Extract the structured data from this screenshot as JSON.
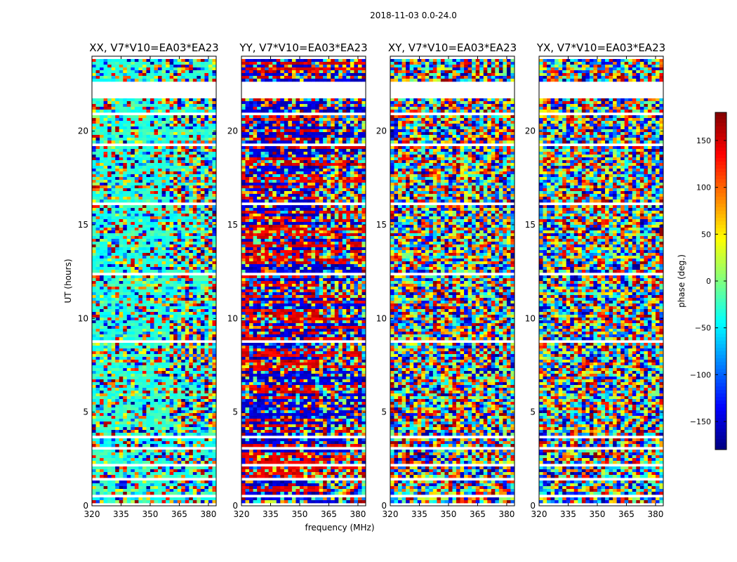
{
  "figure": {
    "suptitle": "2018-11-03 0.0-24.0"
  },
  "chart_data": [
    {
      "type": "heatmap",
      "title": "XX, V7*V10=EA03*EA23",
      "xlabel": "",
      "ylabel": "UT (hours)",
      "xlim": [
        320,
        384
      ],
      "ylim": [
        0,
        24
      ],
      "xticks": [
        320,
        335,
        350,
        365,
        380
      ],
      "yticks": [
        0,
        5,
        10,
        15,
        20
      ],
      "show_yticklabels": true,
      "pattern_seed": 11,
      "pattern_bias": "cyan-dominant"
    },
    {
      "type": "heatmap",
      "title": "YY, V7*V10=EA03*EA23",
      "xlabel": "frequency (MHz)",
      "ylabel": "",
      "xlim": [
        320,
        384
      ],
      "ylim": [
        0,
        24
      ],
      "xticks": [
        320,
        335,
        350,
        365,
        380
      ],
      "yticks": [
        0,
        5,
        10,
        15,
        20
      ],
      "show_yticklabels": true,
      "pattern_seed": 23,
      "pattern_bias": "red-blue"
    },
    {
      "type": "heatmap",
      "title": "XY, V7*V10=EA03*EA23",
      "xlabel": "",
      "ylabel": "",
      "xlim": [
        320,
        384
      ],
      "ylim": [
        0,
        24
      ],
      "xticks": [
        320,
        335,
        350,
        365,
        380
      ],
      "yticks": [
        0,
        5,
        10,
        15,
        20
      ],
      "show_yticklabels": true,
      "pattern_seed": 37,
      "pattern_bias": "noise"
    },
    {
      "type": "heatmap",
      "title": "YX, V7*V10=EA03*EA23",
      "xlabel": "",
      "ylabel": "",
      "xlim": [
        320,
        384
      ],
      "ylim": [
        0,
        24
      ],
      "xticks": [
        320,
        335,
        350,
        365,
        380
      ],
      "yticks": [
        0,
        5,
        10,
        15,
        20
      ],
      "show_yticklabels": true,
      "pattern_seed": 53,
      "pattern_bias": "noise"
    }
  ],
  "colorbar": {
    "label": "phase (deg.)",
    "range": [
      -180,
      180
    ],
    "ticks": [
      150,
      100,
      50,
      0,
      -50,
      -100,
      -150
    ],
    "tick_labels": [
      "150",
      "100",
      "50",
      "0",
      "−50",
      "−100",
      "−150"
    ],
    "colormap": "jet"
  },
  "data_gaps_hours": [
    [
      0.05,
      0.15
    ],
    [
      0.5,
      0.55
    ],
    [
      1.4,
      1.5
    ],
    [
      2.15,
      2.3
    ],
    [
      3.0,
      3.1
    ],
    [
      3.6,
      3.7
    ],
    [
      8.7,
      8.9
    ],
    [
      10.9,
      11.0
    ],
    [
      12.3,
      12.4
    ],
    [
      15.1,
      15.2
    ],
    [
      16.1,
      16.2
    ],
    [
      19.2,
      19.3
    ],
    [
      20.8,
      21.0
    ],
    [
      21.7,
      22.6
    ],
    [
      23.2,
      23.3
    ],
    [
      23.8,
      24.0
    ]
  ]
}
